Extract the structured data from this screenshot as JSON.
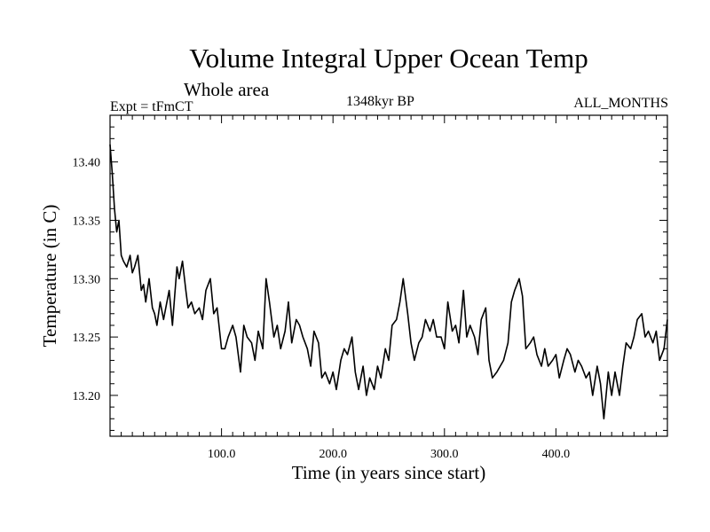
{
  "chart_data": {
    "type": "line",
    "title": "Volume Integral Upper Ocean Temp",
    "subtitle": "Whole area",
    "experiment": "Expt = tFmCT",
    "era": "1348kyr BP",
    "period": "ALL_MONTHS",
    "xlabel": "Time (in years since start)",
    "ylabel": "Temperature (in C)",
    "xlim": [
      0,
      500
    ],
    "ylim": [
      13.165,
      13.44
    ],
    "xticks": [
      100,
      200,
      300,
      400
    ],
    "xtick_labels": [
      "100.0",
      "200.0",
      "300.0",
      "400.0"
    ],
    "yticks": [
      13.2,
      13.25,
      13.3,
      13.35,
      13.4
    ],
    "ytick_labels": [
      "13.20",
      "13.25",
      "13.30",
      "13.35",
      "13.40"
    ],
    "grid": false,
    "series": [
      {
        "name": "Volume Integral Upper Ocean Temp",
        "x": [
          0,
          2,
          4,
          6,
          8,
          10,
          12,
          15,
          18,
          20,
          22,
          25,
          28,
          30,
          32,
          35,
          38,
          40,
          42,
          45,
          48,
          50,
          53,
          56,
          58,
          60,
          62,
          65,
          68,
          70,
          73,
          76,
          80,
          83,
          86,
          90,
          93,
          96,
          100,
          103,
          106,
          110,
          113,
          117,
          120,
          123,
          127,
          130,
          133,
          137,
          140,
          143,
          147,
          150,
          153,
          157,
          160,
          163,
          167,
          170,
          173,
          177,
          180,
          183,
          187,
          190,
          193,
          197,
          200,
          203,
          207,
          210,
          213,
          217,
          220,
          223,
          227,
          230,
          233,
          237,
          240,
          243,
          247,
          250,
          253,
          257,
          260,
          263,
          267,
          270,
          273,
          277,
          280,
          283,
          287,
          290,
          293,
          297,
          300,
          303,
          307,
          310,
          313,
          317,
          320,
          323,
          327,
          330,
          333,
          337,
          340,
          343,
          347,
          350,
          353,
          357,
          360,
          363,
          367,
          370,
          373,
          377,
          380,
          383,
          387,
          390,
          393,
          397,
          400,
          403,
          407,
          410,
          413,
          417,
          420,
          423,
          427,
          430,
          433,
          437,
          440,
          443,
          447,
          450,
          453,
          457,
          460,
          463,
          467,
          470,
          473,
          477,
          480,
          483,
          487,
          490,
          493,
          497,
          500
        ],
        "y": [
          13.415,
          13.39,
          13.36,
          13.34,
          13.35,
          13.32,
          13.315,
          13.31,
          13.32,
          13.305,
          13.31,
          13.32,
          13.29,
          13.295,
          13.28,
          13.3,
          13.275,
          13.27,
          13.26,
          13.28,
          13.265,
          13.275,
          13.29,
          13.26,
          13.285,
          13.31,
          13.3,
          13.315,
          13.29,
          13.275,
          13.28,
          13.27,
          13.275,
          13.265,
          13.29,
          13.3,
          13.27,
          13.275,
          13.24,
          13.24,
          13.25,
          13.26,
          13.25,
          13.22,
          13.26,
          13.25,
          13.245,
          13.23,
          13.255,
          13.24,
          13.3,
          13.28,
          13.25,
          13.26,
          13.24,
          13.255,
          13.28,
          13.245,
          13.265,
          13.26,
          13.25,
          13.24,
          13.225,
          13.255,
          13.245,
          13.215,
          13.22,
          13.21,
          13.22,
          13.205,
          13.23,
          13.24,
          13.235,
          13.25,
          13.22,
          13.205,
          13.225,
          13.2,
          13.215,
          13.205,
          13.225,
          13.215,
          13.24,
          13.23,
          13.26,
          13.265,
          13.28,
          13.3,
          13.27,
          13.245,
          13.23,
          13.245,
          13.25,
          13.265,
          13.255,
          13.265,
          13.25,
          13.25,
          13.24,
          13.28,
          13.255,
          13.26,
          13.245,
          13.29,
          13.25,
          13.26,
          13.25,
          13.235,
          13.265,
          13.275,
          13.23,
          13.215,
          13.22,
          13.225,
          13.23,
          13.245,
          13.28,
          13.29,
          13.3,
          13.285,
          13.24,
          13.245,
          13.25,
          13.235,
          13.225,
          13.24,
          13.225,
          13.23,
          13.235,
          13.215,
          13.23,
          13.24,
          13.235,
          13.22,
          13.23,
          13.225,
          13.215,
          13.22,
          13.2,
          13.225,
          13.21,
          13.18,
          13.22,
          13.2,
          13.22,
          13.2,
          13.225,
          13.245,
          13.24,
          13.25,
          13.265,
          13.27,
          13.25,
          13.255,
          13.245,
          13.255,
          13.23,
          13.24,
          13.265
        ]
      }
    ]
  }
}
